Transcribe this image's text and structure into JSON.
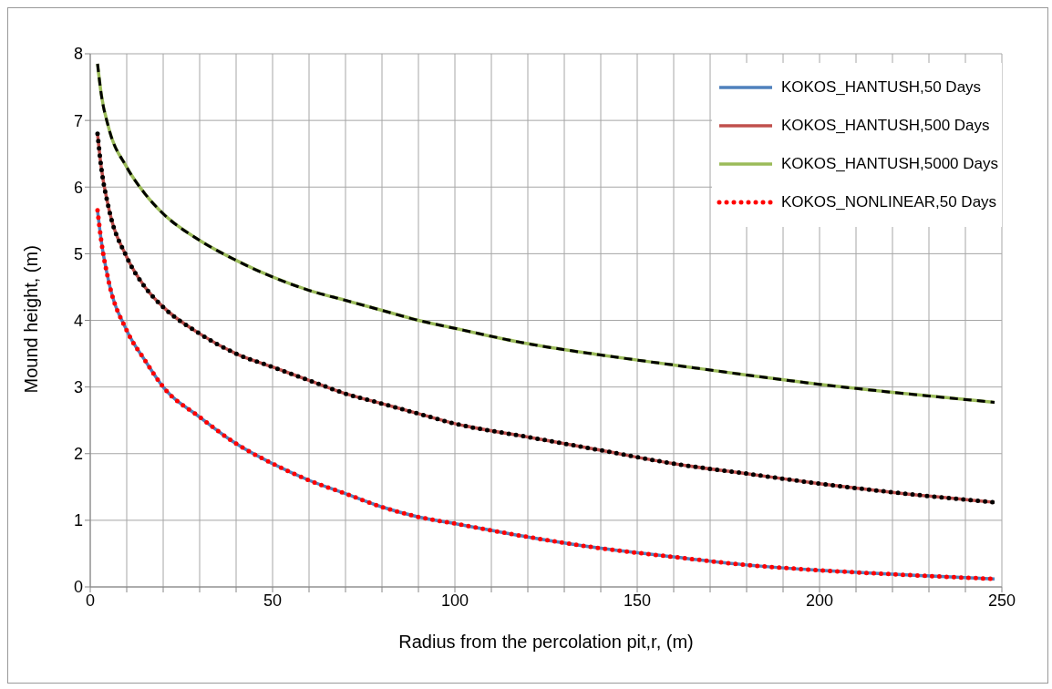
{
  "chart_data": {
    "type": "line",
    "xlabel": "Radius from the percolation pit,r, (m)",
    "ylabel": "Mound height, (m)",
    "x": [
      2,
      3,
      5,
      10,
      15,
      20,
      30,
      40,
      50,
      60,
      70,
      80,
      90,
      100,
      120,
      140,
      160,
      180,
      200,
      220,
      248
    ],
    "series": [
      {
        "name": "KOKOS_HANTUSH,50 Days",
        "color": "#4f81bd",
        "line_style": "solid",
        "values": [
          5.65,
          5.2,
          4.6,
          3.85,
          3.4,
          3.0,
          2.55,
          2.15,
          1.85,
          1.6,
          1.4,
          1.2,
          1.05,
          0.95,
          0.75,
          0.58,
          0.45,
          0.33,
          0.25,
          0.19,
          0.12
        ]
      },
      {
        "name": "KOKOS_HANTUSH,500 Days",
        "color": "#c0504d",
        "line_style": "solid",
        "values": [
          6.8,
          6.3,
          5.7,
          4.95,
          4.5,
          4.2,
          3.8,
          3.5,
          3.3,
          3.1,
          2.9,
          2.75,
          2.6,
          2.45,
          2.25,
          2.05,
          1.85,
          1.7,
          1.55,
          1.42,
          1.27
        ]
      },
      {
        "name": "KOKOS_HANTUSH,5000 Days",
        "color": "#9bbb59",
        "line_style": "solid",
        "values": [
          7.85,
          7.4,
          6.9,
          6.3,
          5.9,
          5.6,
          5.2,
          4.9,
          4.65,
          4.45,
          4.3,
          4.15,
          4.0,
          3.88,
          3.65,
          3.48,
          3.33,
          3.18,
          3.04,
          2.92,
          2.77
        ]
      },
      {
        "name": "KOKOS_NONLINEAR,50 Days",
        "color": "#ff0000",
        "line_style": "dotted",
        "values": [
          5.65,
          5.2,
          4.6,
          3.85,
          3.4,
          3.0,
          2.55,
          2.15,
          1.85,
          1.6,
          1.4,
          1.2,
          1.05,
          0.95,
          0.75,
          0.58,
          0.45,
          0.33,
          0.25,
          0.19,
          0.12
        ]
      },
      {
        "color": "#000000",
        "line_style": "dotted",
        "values": [
          6.8,
          6.3,
          5.7,
          4.95,
          4.5,
          4.2,
          3.8,
          3.5,
          3.3,
          3.1,
          2.9,
          2.75,
          2.6,
          2.45,
          2.25,
          2.05,
          1.85,
          1.7,
          1.55,
          1.42,
          1.27
        ]
      },
      {
        "color": "#000000",
        "line_style": "dashed",
        "values": [
          7.85,
          7.4,
          6.9,
          6.3,
          5.9,
          5.6,
          5.2,
          4.9,
          4.65,
          4.45,
          4.3,
          4.15,
          4.0,
          3.88,
          3.65,
          3.48,
          3.33,
          3.18,
          3.04,
          2.92,
          2.77
        ]
      }
    ],
    "xlim": [
      0,
      250
    ],
    "xticks": [
      0,
      {
        "value": 10,
        "label": null
      },
      {
        "value": 20,
        "label": null
      },
      {
        "value": 30,
        "label": null
      },
      {
        "value": 40,
        "label": null
      },
      50,
      {
        "value": 60,
        "label": null
      },
      {
        "value": 70,
        "label": null
      },
      {
        "value": 80,
        "label": null
      },
      {
        "value": 90,
        "label": null
      },
      100,
      {
        "value": 110,
        "label": null
      },
      {
        "value": 120,
        "label": null
      },
      {
        "value": 130,
        "label": null
      },
      {
        "value": 140,
        "label": null
      },
      150,
      {
        "value": 160,
        "label": null
      },
      {
        "value": 170,
        "label": null
      },
      {
        "value": 180,
        "label": null
      },
      {
        "value": 190,
        "label": null
      },
      200,
      {
        "value": 210,
        "label": null
      },
      {
        "value": 220,
        "label": null
      },
      {
        "value": 230,
        "label": null
      },
      {
        "value": 240,
        "label": null
      },
      250
    ],
    "ylim": [
      0,
      8
    ],
    "yticks": [
      0,
      1,
      2,
      3,
      4,
      5,
      6,
      7,
      8
    ],
    "grid": true,
    "legend": "top right",
    "marker": "none"
  }
}
